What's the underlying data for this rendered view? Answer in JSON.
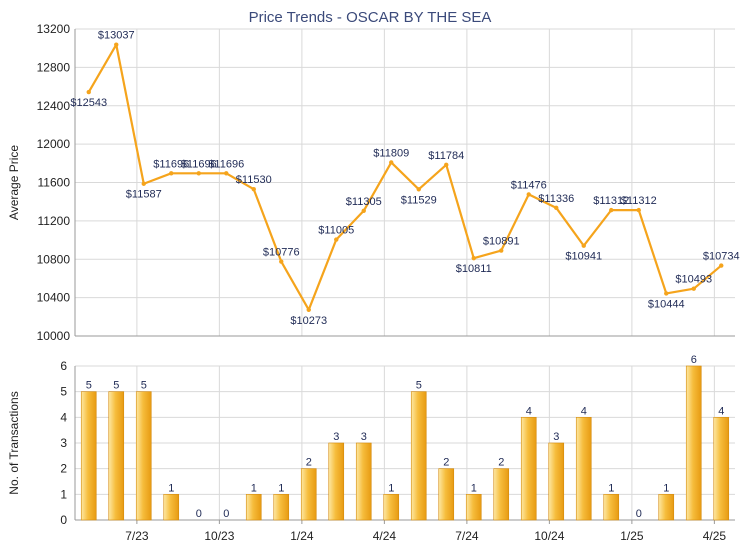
{
  "page": {
    "title": "Price Trends - OSCAR BY THE SEA"
  },
  "colors": {
    "line": "#f5a41c",
    "bar_light": "#fde8a4",
    "bar_mid": "#f6bd3c",
    "bar_dark": "#e79a12",
    "title": "#3b4a7a",
    "grid": "#d9d9d9",
    "axis": "#9a9a9a"
  },
  "chart_data": [
    {
      "type": "line",
      "title": "Price Trends - OSCAR BY THE SEA",
      "ylabel": "Average Price",
      "ylim": [
        10000,
        13200
      ],
      "yticks": [
        10000,
        10400,
        10800,
        11200,
        11600,
        12000,
        12400,
        12800,
        13200
      ],
      "grid": true,
      "points": [
        {
          "slot": 0,
          "value": 12543,
          "label": "$12543"
        },
        {
          "slot": 1,
          "value": 13037,
          "label": "$13037"
        },
        {
          "slot": 2,
          "value": 11587,
          "label": "$11587"
        },
        {
          "slot": 3,
          "value": 11696,
          "label": "$11696"
        },
        {
          "slot": 4,
          "value": 11696,
          "label": "$11696"
        },
        {
          "slot": 5,
          "value": 11696,
          "label": "$11696"
        },
        {
          "slot": 6,
          "value": 11530,
          "label": "$11530"
        },
        {
          "slot": 7,
          "value": 10776,
          "label": "$10776"
        },
        {
          "slot": 8,
          "value": 10273,
          "label": "$10273"
        },
        {
          "slot": 9,
          "value": 11005,
          "label": "$11005"
        },
        {
          "slot": 10,
          "value": 11305,
          "label": "$11305"
        },
        {
          "slot": 11,
          "value": 11809,
          "label": "$11809"
        },
        {
          "slot": 12,
          "value": 11529,
          "label": "$11529"
        },
        {
          "slot": 13,
          "value": 11784,
          "label": "$11784"
        },
        {
          "slot": 14,
          "value": 10811,
          "label": "$10811"
        },
        {
          "slot": 15,
          "value": 10891,
          "label": "$10891"
        },
        {
          "slot": 16,
          "value": 11476,
          "label": "$11476"
        },
        {
          "slot": 17,
          "value": 11336,
          "label": "$11336"
        },
        {
          "slot": 18,
          "value": 10941,
          "label": "$10941"
        },
        {
          "slot": 19,
          "value": 11312,
          "label": "$11312"
        },
        {
          "slot": 20,
          "value": 11312,
          "label": "$11312"
        },
        {
          "slot": 21,
          "value": 10444,
          "label": "$10444"
        },
        {
          "slot": 22,
          "value": 10493,
          "label": "$10493"
        },
        {
          "slot": 23,
          "value": 10734,
          "label": "$10734"
        }
      ]
    },
    {
      "type": "bar",
      "ylabel": "No. of Transactions",
      "ylim": [
        0,
        6
      ],
      "yticks": [
        0,
        1,
        2,
        3,
        4,
        5,
        6
      ],
      "grid": true,
      "values": [
        5,
        5,
        5,
        1,
        0,
        0,
        1,
        1,
        2,
        3,
        3,
        1,
        5,
        2,
        1,
        2,
        4,
        3,
        4,
        1,
        0,
        1,
        6,
        4
      ],
      "xtick_labels": [
        {
          "slot": 2,
          "label": "7/23"
        },
        {
          "slot": 5,
          "label": "10/23"
        },
        {
          "slot": 8,
          "label": "1/24"
        },
        {
          "slot": 11,
          "label": "4/24"
        },
        {
          "slot": 14,
          "label": "7/24"
        },
        {
          "slot": 17,
          "label": "10/24"
        },
        {
          "slot": 20,
          "label": "1/25"
        },
        {
          "slot": 23,
          "label": "4/25"
        }
      ]
    }
  ]
}
